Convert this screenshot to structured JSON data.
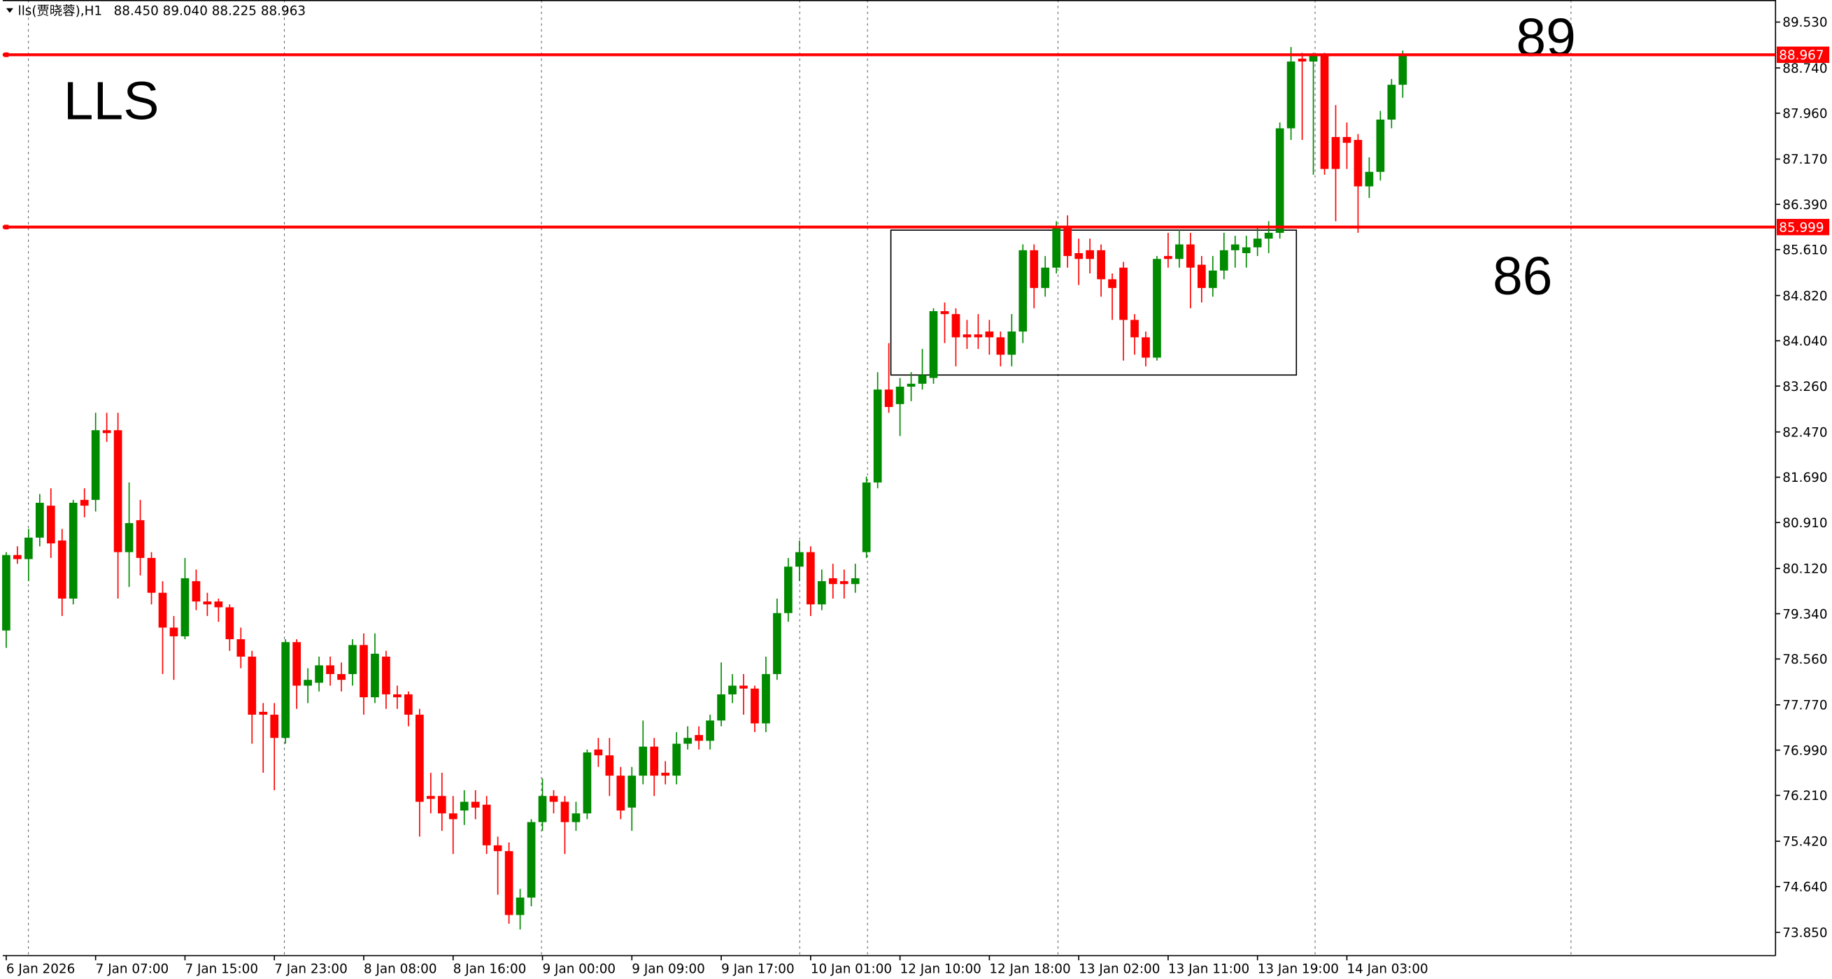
{
  "chart_data": {
    "type": "candlestick",
    "header": {
      "symbol": "lls(贾晓蓉),H1",
      "ohlc": "88.450 89.040 88.225 88.963"
    },
    "annotations": [
      "LLS",
      "89",
      "86"
    ],
    "categories": [
      "6 Jan 2026",
      null,
      null,
      null,
      null,
      null,
      null,
      null,
      "7 Jan 07:00",
      null,
      null,
      null,
      null,
      null,
      null,
      null,
      "7 Jan 15:00",
      null,
      null,
      null,
      null,
      null,
      null,
      null,
      "7 Jan 23:00",
      null,
      null,
      null,
      null,
      null,
      null,
      null,
      "8 Jan 08:00",
      null,
      null,
      null,
      null,
      null,
      null,
      null,
      "8 Jan 16:00",
      null,
      null,
      null,
      null,
      null,
      null,
      null,
      "9 Jan 00:00",
      null,
      null,
      null,
      null,
      null,
      null,
      null,
      "9 Jan 09:00",
      null,
      null,
      null,
      null,
      null,
      null,
      null,
      "9 Jan 17:00",
      null,
      null,
      null,
      null,
      null,
      null,
      null,
      "10 Jan 01:00",
      null,
      null,
      null,
      null,
      null,
      null,
      null,
      "12 Jan 10:00",
      null,
      null,
      null,
      null,
      null,
      null,
      null,
      "12 Jan 18:00",
      null,
      null,
      null,
      null,
      null,
      null,
      null,
      "13 Jan 02:00",
      null,
      null,
      null,
      null,
      null,
      null,
      null,
      "13 Jan 11:00",
      null,
      null,
      null,
      null,
      null,
      null,
      null,
      "13 Jan 19:00",
      null,
      null,
      null,
      null,
      null,
      null,
      null,
      "14 Jan 03:00",
      null,
      null,
      null,
      null,
      null
    ],
    "open": [
      79.05,
      80.35,
      80.28,
      80.65,
      81.2,
      80.6,
      79.6,
      81.3,
      81.3,
      82.5,
      82.5,
      80.4,
      80.95,
      80.3,
      79.7,
      79.1,
      78.95,
      79.9,
      79.55,
      79.55,
      79.45,
      78.9,
      78.6,
      77.65,
      77.6,
      77.2,
      78.85,
      78.1,
      78.15,
      78.45,
      78.3,
      78.3,
      78.8,
      77.9,
      78.6,
      77.95,
      77.95,
      77.6,
      76.2,
      76.2,
      75.9,
      75.95,
      76.1,
      76.05,
      75.35,
      75.25,
      74.15,
      74.45,
      75.75,
      76.2,
      76.1,
      75.75,
      75.9,
      77.0,
      76.9,
      76.55,
      76.0,
      76.55,
      77.05,
      76.6,
      76.55,
      77.1,
      77.25,
      77.15,
      77.5,
      77.95,
      78.1,
      78.05,
      77.45,
      78.3,
      79.35,
      80.15,
      80.4,
      79.5,
      79.95,
      79.9,
      79.85,
      80.4,
      81.6,
      83.2,
      82.95,
      83.25,
      83.3,
      83.4,
      84.55,
      84.5,
      84.15,
      84.15,
      84.2,
      84.1,
      83.8,
      84.2,
      85.6,
      84.95,
      85.3,
      86.0,
      85.55,
      85.6,
      85.6,
      85.1,
      85.3,
      84.4,
      84.1,
      83.75,
      85.5,
      85.45,
      85.7,
      85.35,
      84.95,
      85.25,
      85.6,
      85.55,
      85.65,
      85.8,
      85.9,
      87.7,
      88.9,
      88.85,
      88.95,
      87.55,
      87.55,
      87.5,
      86.7,
      86.95,
      87.85,
      88.45
    ],
    "high": [
      80.4,
      80.5,
      80.8,
      81.4,
      81.5,
      80.8,
      81.3,
      81.5,
      82.8,
      82.8,
      82.8,
      81.6,
      81.3,
      80.4,
      79.9,
      79.3,
      80.3,
      80.1,
      79.7,
      79.6,
      79.5,
      79.1,
      78.7,
      77.8,
      77.8,
      78.9,
      78.9,
      78.4,
      78.6,
      78.6,
      78.5,
      78.9,
      79.0,
      79.0,
      78.7,
      78.1,
      78.0,
      77.7,
      76.6,
      76.6,
      76.2,
      76.3,
      76.3,
      76.2,
      75.5,
      75.4,
      74.6,
      75.8,
      76.5,
      76.3,
      76.2,
      76.1,
      77.0,
      77.2,
      77.2,
      76.7,
      76.7,
      77.5,
      77.2,
      76.8,
      77.3,
      77.4,
      77.4,
      77.6,
      78.5,
      78.3,
      78.3,
      78.1,
      78.6,
      79.6,
      80.3,
      80.6,
      80.5,
      80.1,
      80.2,
      80.1,
      80.2,
      81.7,
      83.5,
      84.0,
      83.4,
      83.5,
      83.9,
      84.6,
      84.7,
      84.6,
      84.4,
      84.5,
      84.4,
      84.2,
      84.5,
      85.7,
      85.7,
      85.5,
      86.1,
      86.2,
      85.8,
      85.8,
      85.7,
      85.2,
      85.4,
      84.5,
      84.2,
      85.5,
      85.9,
      85.95,
      85.9,
      85.5,
      85.5,
      85.9,
      85.85,
      85.85,
      86.0,
      86.1,
      87.8,
      89.1,
      89.0,
      89.0,
      89.0,
      88.1,
      87.8,
      87.6,
      87.2,
      88.0,
      88.55,
      89.04
    ],
    "low": [
      78.75,
      80.2,
      79.9,
      80.5,
      80.3,
      79.3,
      79.5,
      81.0,
      81.1,
      82.3,
      79.6,
      79.8,
      80.0,
      79.5,
      78.3,
      78.2,
      78.9,
      79.4,
      79.3,
      79.2,
      78.7,
      78.4,
      77.1,
      76.6,
      76.3,
      77.1,
      77.7,
      77.8,
      78.0,
      78.1,
      78.0,
      78.1,
      77.6,
      77.8,
      77.7,
      77.7,
      77.4,
      75.5,
      75.9,
      75.6,
      75.2,
      75.7,
      75.8,
      75.2,
      74.5,
      74.0,
      73.9,
      74.3,
      75.6,
      75.9,
      75.2,
      75.6,
      75.8,
      76.7,
      76.2,
      75.8,
      75.6,
      76.4,
      76.2,
      76.4,
      76.4,
      77.0,
      77.0,
      77.0,
      77.4,
      77.8,
      77.6,
      77.3,
      77.3,
      78.2,
      79.2,
      79.9,
      79.3,
      79.4,
      79.6,
      79.6,
      79.7,
      80.3,
      81.5,
      82.8,
      82.4,
      83.0,
      83.2,
      83.3,
      84.0,
      83.6,
      83.9,
      83.9,
      83.8,
      83.6,
      83.6,
      84.0,
      84.6,
      84.8,
      85.2,
      85.3,
      85.0,
      85.2,
      84.8,
      84.4,
      83.7,
      83.8,
      83.6,
      83.7,
      85.3,
      85.3,
      84.6,
      84.7,
      84.8,
      85.1,
      85.3,
      85.3,
      85.5,
      85.55,
      85.8,
      87.5,
      87.5,
      86.9,
      86.9,
      86.1,
      87.0,
      85.9,
      86.5,
      86.8,
      87.7,
      88.225
    ],
    "close": [
      80.35,
      80.28,
      80.65,
      81.25,
      80.55,
      79.6,
      81.25,
      81.2,
      82.5,
      82.45,
      80.4,
      80.9,
      80.3,
      79.7,
      79.1,
      78.95,
      79.95,
      79.55,
      79.5,
      79.45,
      78.9,
      78.6,
      77.6,
      77.6,
      77.2,
      78.85,
      78.1,
      78.2,
      78.45,
      78.3,
      78.2,
      78.8,
      77.9,
      78.65,
      77.95,
      77.9,
      77.6,
      76.1,
      76.15,
      75.9,
      75.8,
      76.1,
      76.0,
      75.35,
      75.25,
      74.15,
      74.45,
      75.75,
      76.2,
      76.1,
      75.75,
      75.9,
      76.95,
      76.9,
      76.55,
      75.95,
      76.55,
      77.05,
      76.55,
      76.55,
      77.1,
      77.2,
      77.15,
      77.5,
      77.95,
      78.1,
      78.05,
      77.45,
      78.3,
      79.35,
      80.15,
      80.4,
      79.5,
      79.9,
      79.85,
      79.85,
      79.95,
      81.6,
      83.2,
      82.9,
      83.25,
      83.3,
      83.45,
      84.55,
      84.5,
      84.1,
      84.1,
      84.1,
      84.1,
      83.8,
      84.2,
      85.6,
      84.95,
      85.3,
      86.0,
      85.5,
      85.45,
      85.45,
      85.1,
      84.95,
      84.4,
      84.1,
      83.75,
      85.45,
      85.45,
      85.7,
      85.3,
      84.95,
      85.25,
      85.6,
      85.7,
      85.65,
      85.8,
      85.9,
      87.7,
      88.85,
      88.85,
      88.95,
      87.0,
      87.0,
      87.45,
      86.7,
      86.95,
      87.85,
      88.45,
      88.963
    ],
    "up_color": "#008a00",
    "down_color": "#ff0000",
    "levels": {
      "color": "#ff0000",
      "values": [
        88.967,
        85.999
      ],
      "value_labels": [
        "88.967",
        "85.999"
      ]
    },
    "ylim": [
      73.45,
      89.91
    ],
    "yticks": [
      {
        "value": 89.53,
        "label": "89.530"
      },
      {
        "value": 88.74,
        "label": "88.740"
      },
      {
        "value": 87.96,
        "label": "87.960"
      },
      {
        "value": 87.17,
        "label": "87.170"
      },
      {
        "value": 86.39,
        "label": "86.390"
      },
      {
        "value": 85.61,
        "label": "85.610"
      },
      {
        "value": 84.82,
        "label": "84.820"
      },
      {
        "value": 84.04,
        "label": "84.040"
      },
      {
        "value": 83.26,
        "label": "83.260"
      },
      {
        "value": 82.47,
        "label": "82.470"
      },
      {
        "value": 81.69,
        "label": "81.690"
      },
      {
        "value": 80.91,
        "label": "80.910"
      },
      {
        "value": 80.12,
        "label": "80.120"
      },
      {
        "value": 79.34,
        "label": "79.340"
      },
      {
        "value": 78.56,
        "label": "78.560"
      },
      {
        "value": 77.77,
        "label": "77.770"
      },
      {
        "value": 76.99,
        "label": "76.990"
      },
      {
        "value": 76.21,
        "label": "76.210"
      },
      {
        "value": 75.42,
        "label": "75.420"
      },
      {
        "value": 74.64,
        "label": "74.640"
      },
      {
        "value": 73.85,
        "label": "73.850"
      }
    ],
    "grid": false
  }
}
